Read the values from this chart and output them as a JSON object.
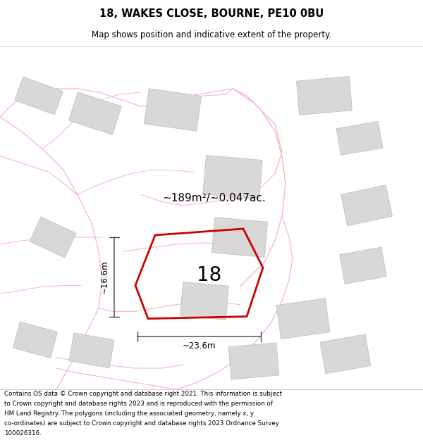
{
  "title": "18, WAKES CLOSE, BOURNE, PE10 0BU",
  "subtitle": "Map shows position and indicative extent of the property.",
  "footer": "Contains OS data © Crown copyright and database right 2021. This information is subject to Crown copyright and database rights 2023 and is reproduced with the permission of HM Land Registry. The polygons (including the associated geometry, namely x, y co-ordinates) are subject to Crown copyright and database rights 2023 Ordnance Survey 100026316.",
  "area_label": "~189m²/~0.047ac.",
  "width_label": "~23.6m",
  "height_label": "~16.6m",
  "plot_number": "18",
  "bg_color": "#ffffff",
  "road_color": "#f5b8b8",
  "building_fill": "#d8d8d8",
  "building_stroke": "#c0c0c0",
  "plot_fill": "none",
  "plot_outline": "#cc0000",
  "dim_color": "#444444",
  "text_color": "#000000"
}
